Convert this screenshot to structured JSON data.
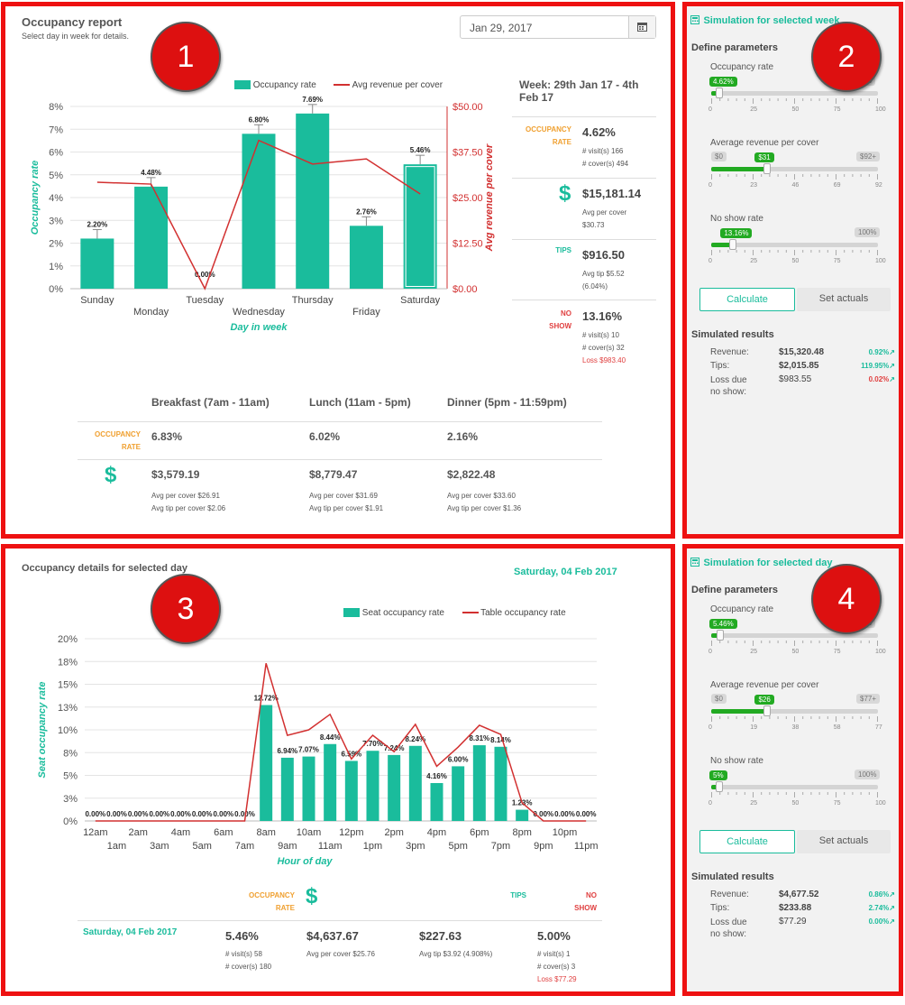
{
  "badges": [
    "1",
    "2",
    "3",
    "4"
  ],
  "occupancy_report": {
    "title": "Occupancy report",
    "subtitle": "Select day in week for details.",
    "date_value": "Jan 29, 2017",
    "legend_bar": "Occupancy rate",
    "legend_line": "Avg revenue per cover",
    "week": {
      "title_line1": "Week: 29th Jan 17 - 4th",
      "title_line2": "Feb 17",
      "occ_label_1": "OCCUPANCY",
      "occ_label_2": "RATE",
      "occ_value": "4.62%",
      "visits": "# visit(s) 166",
      "covers": "# cover(s) 494",
      "dollar_icon": "$",
      "revenue_value": "$15,181.14",
      "avg_per_cover_1": "Avg per cover",
      "avg_per_cover_2": "$30.73",
      "tips_label": "TIPS",
      "tips_value": "$916.50",
      "avg_tip_1": "Avg tip $5.52",
      "avg_tip_2": "(6.04%)",
      "noshow_label_1": "NO",
      "noshow_label_2": "SHOW",
      "noshow_value": "13.16%",
      "noshow_visits": "# visit(s) 10",
      "noshow_covers": "# cover(s) 32",
      "noshow_loss": "Loss $983.40"
    },
    "meals": {
      "occ_label_1": "OCCUPANCY",
      "occ_label_2": "RATE",
      "dollar_icon": "$",
      "columns": [
        {
          "head": "Breakfast (7am - 11am)",
          "occ": "6.83%",
          "rev": "$3,579.19",
          "avg_cover": "Avg per cover $26.91",
          "avg_tip": "Avg tip per cover $2.06"
        },
        {
          "head": "Lunch (11am - 5pm)",
          "occ": "6.02%",
          "rev": "$8,779.47",
          "avg_cover": "Avg per cover $31.69",
          "avg_tip": "Avg tip per cover $1.91"
        },
        {
          "head": "Dinner (5pm - 11:59pm)",
          "occ": "2.16%",
          "rev": "$2,822.48",
          "avg_cover": "Avg per cover $33.60",
          "avg_tip": "Avg tip per cover $1.36"
        }
      ]
    }
  },
  "sim_week": {
    "title": "Simulation for selected week",
    "define": "Define parameters",
    "occ_label": "Occupancy rate",
    "occ_tag": "4.62%",
    "occ_level": 4.62,
    "occ_max_tag": "100",
    "occ_ticks": [
      "0",
      "25",
      "50",
      "75",
      "100"
    ],
    "rev_label": "Average revenue per cover",
    "rev_min_tag": "$0",
    "rev_tag": "$31",
    "rev_level": 31,
    "rev_max_tag": "$92+",
    "rev_ticks": [
      "0",
      "23",
      "46",
      "69",
      "92"
    ],
    "ns_label": "No show rate",
    "ns_tag": "13.16%",
    "ns_level": 13.16,
    "ns_max_tag": "100%",
    "ns_ticks": [
      "0",
      "25",
      "50",
      "75",
      "100"
    ],
    "calculate": "Calculate",
    "set_actuals": "Set actuals",
    "results_title": "Simulated results",
    "revenue_label": "Revenue:",
    "revenue_value": "$15,320.48",
    "revenue_pct": "0.92%",
    "tips_label": "Tips:",
    "tips_value": "$2,015.85",
    "tips_pct": "119.95%",
    "loss_label_1": "Loss due",
    "loss_label_2": "no show:",
    "loss_value": "$983.55",
    "loss_pct": "0.02%"
  },
  "day_details": {
    "title": "Occupancy details for selected day",
    "date": "Saturday, 04 Feb 2017",
    "legend_bar": "Seat occupancy rate",
    "legend_line": "Table occupancy rate",
    "occ_label_1": "OCCUPANCY",
    "occ_label_2": "RATE",
    "dollar_icon": "$",
    "tips_label": "TIPS",
    "noshow_label_1": "NO",
    "noshow_label_2": "SHOW",
    "row_date": "Saturday, 04 Feb 2017",
    "occ_value": "5.46%",
    "visits": "# visit(s) 58",
    "covers": "# cover(s) 180",
    "revenue_value": "$4,637.67",
    "avg_per_cover": "Avg per cover $25.76",
    "tips_value": "$227.63",
    "avg_tip": "Avg tip $3.92 (4.908%)",
    "noshow_value": "5.00%",
    "noshow_visits": "# visit(s) 1",
    "noshow_covers": "# cover(s) 3",
    "noshow_loss": "Loss $77.29"
  },
  "sim_day": {
    "title": "Simulation for selected day",
    "define": "Define parameters",
    "occ_label": "Occupancy rate",
    "occ_tag": "5.46%",
    "occ_level": 5.46,
    "occ_max_tag": "100",
    "occ_ticks": [
      "0",
      "25",
      "50",
      "75",
      "100"
    ],
    "rev_label": "Average revenue per cover",
    "rev_min_tag": "$0",
    "rev_tag": "$26",
    "rev_level": 26,
    "rev_max_tag": "$77+",
    "rev_ticks": [
      "0",
      "19",
      "38",
      "58",
      "77"
    ],
    "ns_label": "No show rate",
    "ns_tag": "5%",
    "ns_level": 5,
    "ns_max_tag": "100%",
    "ns_ticks": [
      "0",
      "25",
      "50",
      "75",
      "100"
    ],
    "calculate": "Calculate",
    "set_actuals": "Set actuals",
    "results_title": "Simulated results",
    "revenue_label": "Revenue:",
    "revenue_value": "$4,677.52",
    "revenue_pct": "0.86%",
    "tips_label": "Tips:",
    "tips_value": "$233.88",
    "tips_pct": "2.74%",
    "loss_label_1": "Loss due",
    "loss_label_2": "no show:",
    "loss_value": "$77.29",
    "loss_pct": "0.00%"
  },
  "chart_data": [
    {
      "type": "bar",
      "categories": [
        "Sunday",
        "Monday",
        "Tuesday",
        "Wednesday",
        "Thursday",
        "Friday",
        "Saturday"
      ],
      "series": [
        {
          "name": "Occupancy rate",
          "axis": "left",
          "values": [
            2.2,
            4.48,
            0.0,
            6.8,
            7.69,
            2.76,
            5.46
          ]
        },
        {
          "name": "Avg revenue per cover",
          "axis": "right",
          "type": "line",
          "values": [
            29.2,
            28.7,
            0.0,
            40.7,
            34.2,
            35.6,
            26.0
          ]
        }
      ],
      "data_labels": [
        "2.20%",
        "4.48%",
        "0.00%",
        "6.80%",
        "7.69%",
        "2.76%",
        "5.46%"
      ],
      "xlabel": "Day in week",
      "ylabel": "Occupancy rate",
      "y2label": "Avg revenue per cover",
      "ylim": [
        0,
        8
      ],
      "y2lim": [
        0,
        50
      ],
      "yticks": [
        "0%",
        "1%",
        "2%",
        "3%",
        "4%",
        "5%",
        "6%",
        "7%",
        "8%"
      ],
      "y2ticks": [
        "$0.00",
        "$12.50",
        "$25.00",
        "$37.50",
        "$50.00"
      ],
      "selected": "Saturday",
      "grid": true,
      "legend": "top"
    },
    {
      "type": "bar",
      "categories": [
        "12am",
        "1am",
        "2am",
        "3am",
        "4am",
        "5am",
        "6am",
        "7am",
        "8am",
        "9am",
        "10am",
        "11am",
        "12pm",
        "1pm",
        "2pm",
        "3pm",
        "4pm",
        "5pm",
        "6pm",
        "7pm",
        "8pm",
        "9pm",
        "10pm",
        "11pm"
      ],
      "series": [
        {
          "name": "Seat occupancy rate",
          "values": [
            0,
            0,
            0,
            0,
            0,
            0,
            0,
            0,
            12.72,
            6.94,
            7.07,
            8.44,
            6.59,
            7.7,
            7.24,
            8.24,
            4.16,
            6.0,
            8.31,
            8.14,
            1.23,
            0,
            0,
            0
          ]
        },
        {
          "name": "Table occupancy rate",
          "type": "line",
          "values": [
            0,
            0,
            0,
            0,
            0,
            0,
            0,
            0,
            17.3,
            9.4,
            10.0,
            11.7,
            6.8,
            9.4,
            7.6,
            10.6,
            6.0,
            8.1,
            10.5,
            9.5,
            2.0,
            0,
            0,
            0
          ]
        }
      ],
      "data_labels": [
        "0.00%",
        "0.00%",
        "0.00%",
        "0.00%",
        "0.00%",
        "0.00%",
        "0.00%",
        "0.00%",
        "12.72%",
        "6.94%",
        "7.07%",
        "8.44%",
        "6.59%",
        "7.70%",
        "7.24%",
        "8.24%",
        "4.16%",
        "6.00%",
        "8.31%",
        "8.14%",
        "1.23%",
        "0.00%",
        "0.00%",
        "0.00%"
      ],
      "xlabel": "Hour of day",
      "ylabel": "Seat occupancy rate",
      "ylim": [
        0,
        20
      ],
      "yticks": [
        "0%",
        "3%",
        "5%",
        "8%",
        "10%",
        "13%",
        "15%",
        "18%",
        "20%"
      ],
      "grid": true,
      "legend": "top-right"
    }
  ]
}
